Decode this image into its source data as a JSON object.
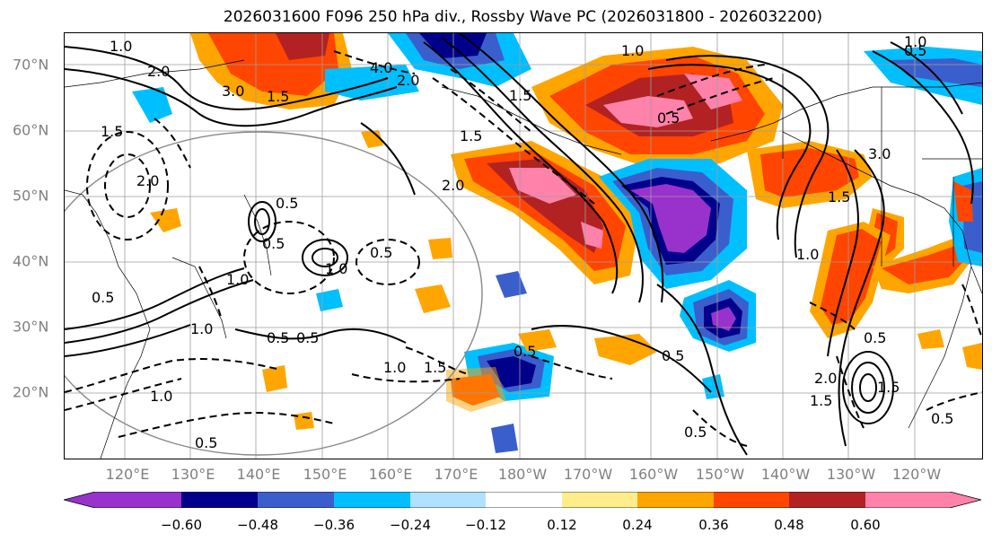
{
  "title": "2026031600 F096 250 hPa div., Rossby Wave PC (2026031800 - 2026032200)",
  "latitude_labels": [
    "70°N",
    "60°N",
    "50°N",
    "40°N",
    "30°N",
    "20°N"
  ],
  "longitude_labels": [
    "120°E",
    "130°E",
    "140°E",
    "150°E",
    "160°E",
    "170°E",
    "180°W",
    "170°W",
    "160°W",
    "150°W",
    "140°W",
    "130°W",
    "120°W"
  ],
  "colorbar": {
    "colors": [
      "#9932cc",
      "#00008b",
      "#3a5fcd",
      "#00bfff",
      "#b0e2ff",
      "#ffffff",
      "#ffec8b",
      "#ffa500",
      "#ff4500",
      "#b22222",
      "#ff82ab"
    ],
    "tick_labels": [
      "−0.60",
      "−0.48",
      "−0.36",
      "−0.24",
      "−0.12",
      "0.12",
      "0.24",
      "0.36",
      "0.48",
      "0.60"
    ]
  },
  "contour_labels": [
    "1.0",
    "2.0",
    "3.0",
    "1.5",
    "4.0",
    "2.0",
    "1.5",
    "3.0",
    "1.0",
    "0.5",
    "0.5",
    "1.0",
    "1.5",
    "2.0",
    "1.5",
    "1.0",
    "0.5",
    "0.5",
    "1.0",
    "1.0",
    "0.5",
    "1.0",
    "0.5",
    "0.5",
    "0.5",
    "2.0",
    "1.5",
    "1.0",
    "0.5",
    "0.5",
    "0.5",
    "0.5",
    "1.5",
    "1.0",
    "1.5",
    "2.0",
    "1.5",
    "0.5",
    "0.5"
  ]
}
